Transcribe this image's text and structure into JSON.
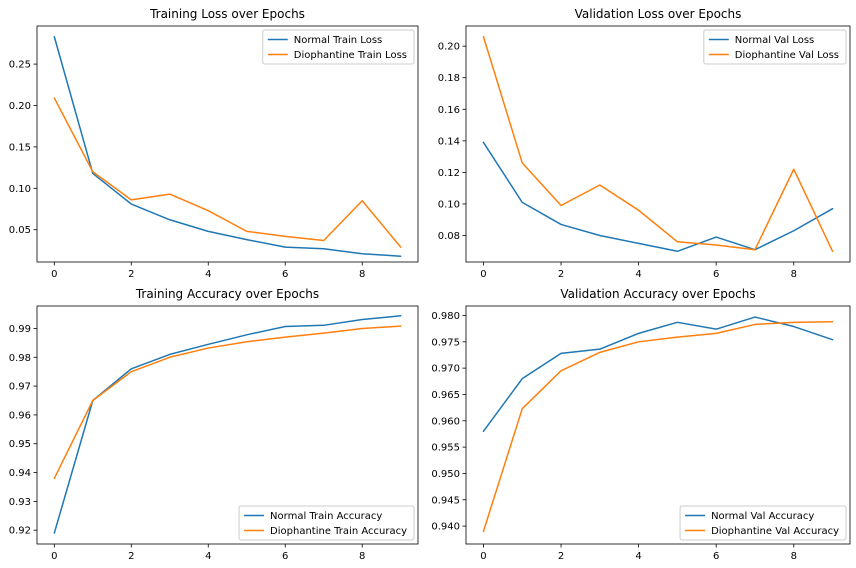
{
  "colors": {
    "normal": "#1f77b4",
    "diophantine": "#ff7f0e"
  },
  "chart_data": [
    {
      "type": "line",
      "title": "Training Loss over Epochs",
      "x": [
        0,
        1,
        2,
        3,
        4,
        5,
        6,
        7,
        8,
        9
      ],
      "xlim": [
        -0.45,
        9.45
      ],
      "xticks": [
        0,
        2,
        4,
        6,
        8
      ],
      "ylim": [
        0.011,
        0.296
      ],
      "yticks": [
        0.05,
        0.1,
        0.15,
        0.2,
        0.25
      ],
      "ytick_labels": [
        "0.05",
        "0.10",
        "0.15",
        "0.20",
        "0.25"
      ],
      "legend_loc": "upper right",
      "series": [
        {
          "name": "Normal Train Loss",
          "color_key": "normal",
          "values": [
            0.283,
            0.118,
            0.081,
            0.062,
            0.048,
            0.038,
            0.029,
            0.027,
            0.021,
            0.018
          ]
        },
        {
          "name": "Diophantine Train Loss",
          "color_key": "diophantine",
          "values": [
            0.209,
            0.12,
            0.086,
            0.093,
            0.073,
            0.048,
            0.042,
            0.037,
            0.085,
            0.029
          ]
        }
      ]
    },
    {
      "type": "line",
      "title": "Validation Loss over Epochs",
      "x": [
        0,
        1,
        2,
        3,
        4,
        5,
        6,
        7,
        8,
        9
      ],
      "xlim": [
        -0.45,
        9.45
      ],
      "xticks": [
        0,
        2,
        4,
        6,
        8
      ],
      "ylim": [
        0.0632,
        0.2128
      ],
      "yticks": [
        0.08,
        0.1,
        0.12,
        0.14,
        0.16,
        0.18,
        0.2
      ],
      "ytick_labels": [
        "0.08",
        "0.10",
        "0.12",
        "0.14",
        "0.16",
        "0.18",
        "0.20"
      ],
      "legend_loc": "upper right",
      "series": [
        {
          "name": "Normal Val Loss",
          "color_key": "normal",
          "values": [
            0.139,
            0.101,
            0.087,
            0.08,
            0.075,
            0.07,
            0.079,
            0.071,
            0.083,
            0.097
          ]
        },
        {
          "name": "Diophantine Val Loss",
          "color_key": "diophantine",
          "values": [
            0.206,
            0.126,
            0.099,
            0.112,
            0.096,
            0.076,
            0.074,
            0.071,
            0.122,
            0.07
          ]
        }
      ]
    },
    {
      "type": "line",
      "title": "Training Accuracy over Epochs",
      "x": [
        0,
        1,
        2,
        3,
        4,
        5,
        6,
        7,
        8,
        9
      ],
      "xlim": [
        -0.45,
        9.45
      ],
      "xticks": [
        0,
        2,
        4,
        6,
        8
      ],
      "ylim": [
        0.9152,
        0.9978
      ],
      "yticks": [
        0.92,
        0.93,
        0.94,
        0.95,
        0.96,
        0.97,
        0.98,
        0.99
      ],
      "ytick_labels": [
        "0.92",
        "0.93",
        "0.94",
        "0.95",
        "0.96",
        "0.97",
        "0.98",
        "0.99"
      ],
      "legend_loc": "lower right",
      "series": [
        {
          "name": "Normal Train Accuracy",
          "color_key": "normal",
          "values": [
            0.919,
            0.965,
            0.976,
            0.981,
            0.9845,
            0.9878,
            0.9907,
            0.9911,
            0.9931,
            0.9944
          ]
        },
        {
          "name": "Diophantine Train Accuracy",
          "color_key": "diophantine",
          "values": [
            0.938,
            0.965,
            0.975,
            0.98,
            0.9832,
            0.9854,
            0.987,
            0.9884,
            0.99,
            0.9908
          ]
        }
      ]
    },
    {
      "type": "line",
      "title": "Validation Accuracy over Epochs",
      "x": [
        0,
        1,
        2,
        3,
        4,
        5,
        6,
        7,
        8,
        9
      ],
      "xlim": [
        -0.45,
        9.45
      ],
      "xticks": [
        0,
        2,
        4,
        6,
        8
      ],
      "ylim": [
        0.9366,
        0.9818
      ],
      "yticks": [
        0.94,
        0.945,
        0.95,
        0.955,
        0.96,
        0.965,
        0.97,
        0.975,
        0.98
      ],
      "ytick_labels": [
        "0.940",
        "0.945",
        "0.950",
        "0.955",
        "0.960",
        "0.965",
        "0.970",
        "0.975",
        "0.980"
      ],
      "legend_loc": "lower right",
      "series": [
        {
          "name": "Normal Val Accuracy",
          "color_key": "normal",
          "values": [
            0.958,
            0.968,
            0.9728,
            0.9736,
            0.9766,
            0.9787,
            0.9774,
            0.9797,
            0.9779,
            0.9754
          ]
        },
        {
          "name": "Diophantine Val Accuracy",
          "color_key": "diophantine",
          "values": [
            0.939,
            0.9623,
            0.9695,
            0.973,
            0.975,
            0.9759,
            0.9766,
            0.9783,
            0.9787,
            0.9788
          ]
        }
      ]
    }
  ]
}
